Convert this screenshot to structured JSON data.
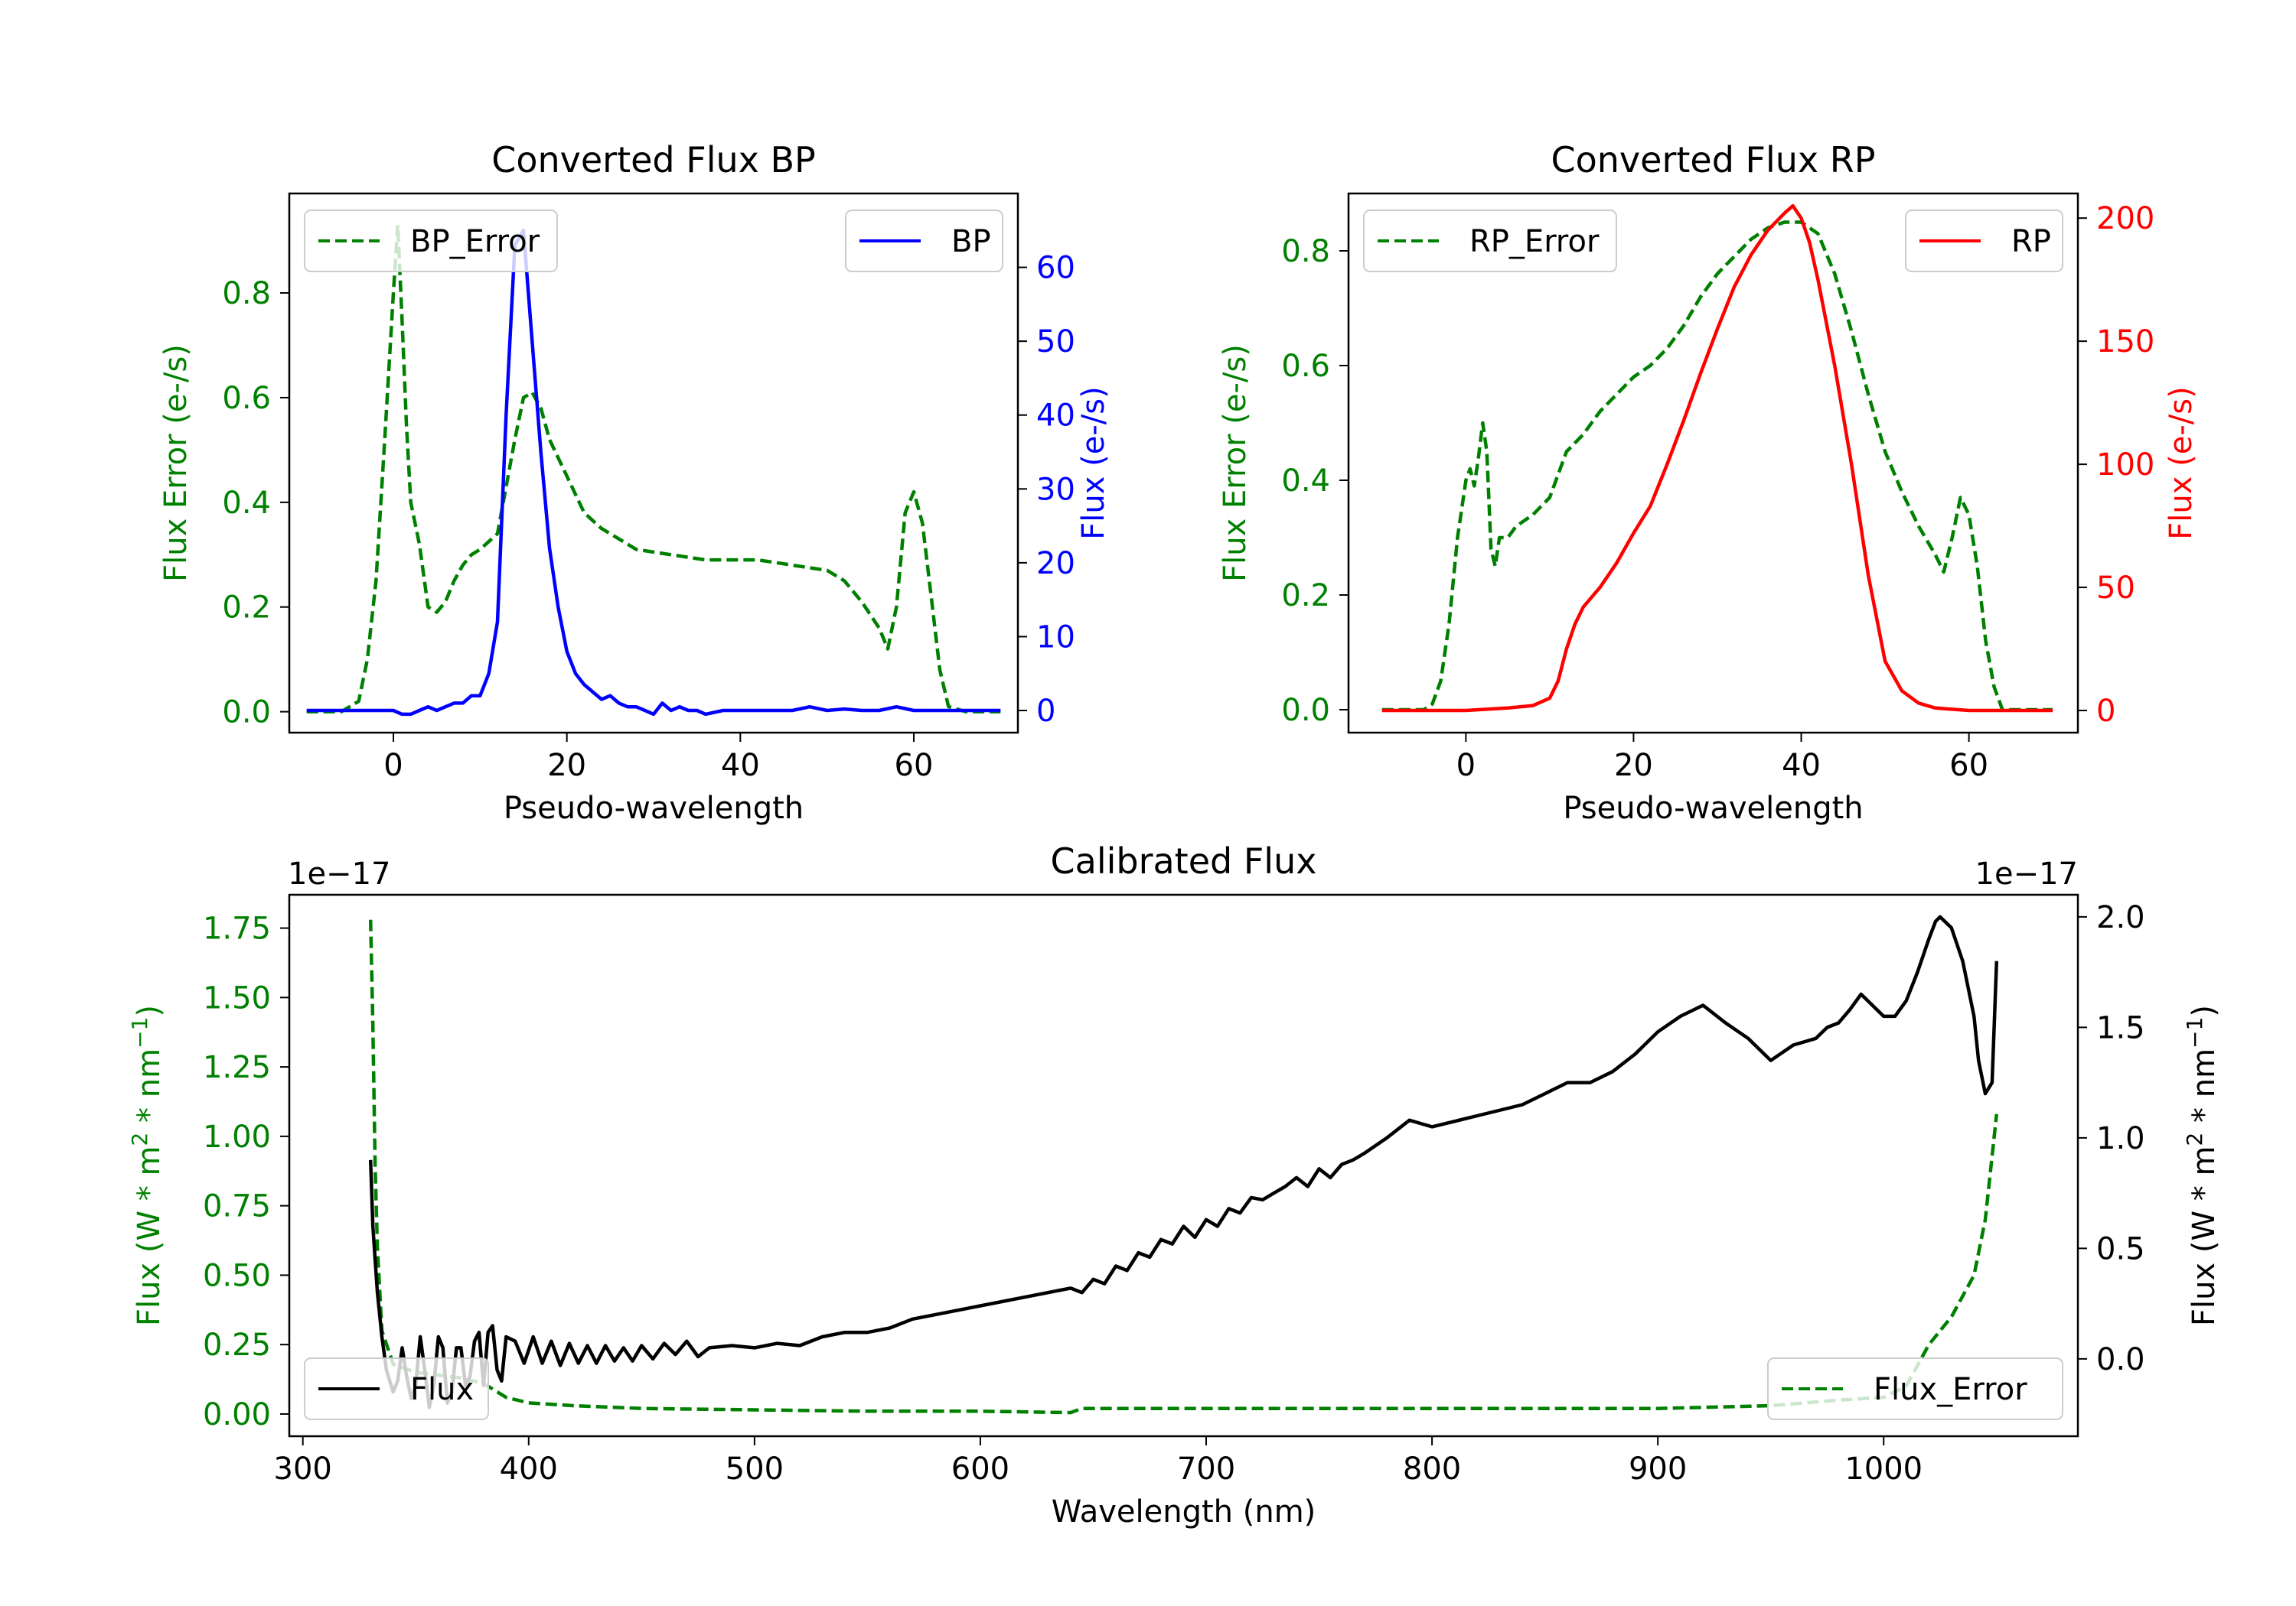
{
  "colors": {
    "green": "#008000",
    "blue": "#0000ff",
    "red": "#ff0000",
    "black": "#000000"
  },
  "chart_data": [
    {
      "type": "line",
      "title": "Converted Flux BP",
      "xlabel": "Pseudo-wavelength",
      "ylabel_left": "Flux Error (e-/s)",
      "ylabel_right": "Flux (e-/s)",
      "xlim": [
        -12,
        72
      ],
      "ylim_left": [
        -0.04,
        0.99
      ],
      "ylim_right": [
        -3,
        70
      ],
      "xticks": [
        0,
        20,
        40,
        60
      ],
      "yticks_left": [
        0.0,
        0.2,
        0.4,
        0.6,
        0.8
      ],
      "yticks_right": [
        0,
        10,
        20,
        30,
        40,
        50,
        60
      ],
      "legend_left": "BP_Error",
      "legend_right": "BP",
      "series": [
        {
          "name": "BP_Error",
          "axis": "left",
          "color": "green",
          "dash": true,
          "x": [
            -10,
            -6,
            -4,
            -3,
            -2,
            -1,
            0,
            0.5,
            1,
            1.5,
            2,
            3,
            4,
            5,
            6,
            7,
            8,
            9,
            10,
            12,
            14,
            15,
            16,
            17,
            18,
            20,
            22,
            24,
            26,
            28,
            30,
            32,
            34,
            36,
            38,
            40,
            42,
            44,
            46,
            48,
            50,
            52,
            54,
            56,
            57,
            58,
            59,
            60,
            61,
            62,
            63,
            64,
            66,
            70
          ],
          "y": [
            0,
            0,
            0.02,
            0.1,
            0.25,
            0.52,
            0.8,
            0.93,
            0.75,
            0.55,
            0.4,
            0.32,
            0.2,
            0.19,
            0.21,
            0.25,
            0.28,
            0.3,
            0.31,
            0.34,
            0.52,
            0.6,
            0.61,
            0.58,
            0.52,
            0.45,
            0.38,
            0.35,
            0.33,
            0.31,
            0.305,
            0.3,
            0.295,
            0.29,
            0.29,
            0.29,
            0.29,
            0.285,
            0.28,
            0.275,
            0.27,
            0.25,
            0.21,
            0.16,
            0.12,
            0.2,
            0.38,
            0.42,
            0.36,
            0.22,
            0.08,
            0.01,
            0,
            0
          ]
        },
        {
          "name": "BP",
          "axis": "right",
          "color": "blue",
          "dash": false,
          "x": [
            -10,
            -5,
            -2,
            0,
            1,
            2,
            3,
            4,
            5,
            6,
            7,
            8,
            9,
            10,
            11,
            12,
            13,
            14,
            15,
            16,
            17,
            18,
            19,
            20,
            21,
            22,
            23,
            24,
            25,
            26,
            27,
            28,
            29,
            30,
            31,
            32,
            33,
            34,
            35,
            36,
            38,
            40,
            42,
            44,
            46,
            48,
            50,
            52,
            54,
            56,
            58,
            60,
            62,
            64,
            66,
            70
          ],
          "y": [
            0,
            0,
            0,
            0,
            -0.5,
            -0.5,
            0,
            0.5,
            0,
            0.5,
            1,
            1,
            2,
            2,
            5,
            12,
            40,
            63,
            65,
            50,
            35,
            22,
            14,
            8,
            5,
            3.5,
            2.5,
            1.5,
            2,
            1,
            0.5,
            0.5,
            0,
            -0.5,
            1,
            0,
            0.5,
            0,
            0,
            -0.5,
            0,
            0,
            0,
            0,
            0,
            0.5,
            0,
            0.2,
            0,
            0,
            0.5,
            0,
            0,
            0,
            0,
            0
          ]
        }
      ]
    },
    {
      "type": "line",
      "title": "Converted Flux RP",
      "xlabel": "Pseudo-wavelength",
      "ylabel_left": "Flux Error (e-/s)",
      "ylabel_right": "Flux (e-/s)",
      "xlim": [
        -14,
        73
      ],
      "ylim_left": [
        -0.04,
        0.9
      ],
      "ylim_right": [
        -9,
        210
      ],
      "xticks": [
        0,
        20,
        40,
        60
      ],
      "yticks_left": [
        0.0,
        0.2,
        0.4,
        0.6,
        0.8
      ],
      "yticks_right": [
        0,
        50,
        100,
        150,
        200
      ],
      "legend_left": "RP_Error",
      "legend_right": "RP",
      "series": [
        {
          "name": "RP_Error",
          "axis": "left",
          "color": "green",
          "dash": true,
          "x": [
            -10,
            -5,
            -4,
            -3,
            -2,
            -1,
            0,
            0.5,
            1,
            1.5,
            2,
            2.5,
            3,
            3.5,
            4,
            5,
            6,
            8,
            10,
            12,
            14,
            16,
            18,
            20,
            22,
            24,
            26,
            28,
            30,
            32,
            34,
            36,
            38,
            40,
            42,
            44,
            46,
            48,
            50,
            52,
            54,
            56,
            57,
            58,
            59,
            60,
            61,
            62,
            63,
            64,
            66,
            70
          ],
          "y": [
            0,
            0,
            0.01,
            0.05,
            0.15,
            0.3,
            0.4,
            0.42,
            0.39,
            0.44,
            0.5,
            0.45,
            0.28,
            0.25,
            0.3,
            0.3,
            0.32,
            0.34,
            0.37,
            0.45,
            0.48,
            0.52,
            0.55,
            0.58,
            0.6,
            0.63,
            0.67,
            0.72,
            0.76,
            0.79,
            0.82,
            0.84,
            0.85,
            0.85,
            0.83,
            0.76,
            0.66,
            0.55,
            0.45,
            0.38,
            0.32,
            0.27,
            0.24,
            0.3,
            0.37,
            0.34,
            0.25,
            0.12,
            0.04,
            0,
            0,
            0
          ]
        },
        {
          "name": "RP",
          "axis": "right",
          "color": "red",
          "dash": false,
          "x": [
            -10,
            0,
            5,
            8,
            10,
            11,
            12,
            13,
            14,
            16,
            18,
            20,
            22,
            24,
            26,
            28,
            30,
            32,
            34,
            36,
            38,
            39,
            40,
            41,
            42,
            44,
            46,
            48,
            50,
            52,
            54,
            56,
            60,
            64,
            70
          ],
          "y": [
            0,
            0,
            1,
            2,
            5,
            12,
            25,
            35,
            42,
            50,
            60,
            72,
            83,
            100,
            118,
            137,
            155,
            172,
            185,
            195,
            202,
            205,
            200,
            190,
            175,
            140,
            100,
            55,
            20,
            8,
            3,
            1,
            0,
            0,
            0
          ]
        }
      ]
    },
    {
      "type": "line",
      "title": "Calibrated Flux",
      "xlabel": "Wavelength (nm)",
      "ylabel_left": "Flux (W * m$^2$ * nm$^{-1}$)",
      "ylabel_right": "Flux (W * m$^2$ * nm$^{-1}$)",
      "offset_left": "1e−17",
      "offset_right": "1e−17",
      "xlim": [
        294,
        1086
      ],
      "ylim_left": [
        -0.08,
        1.87
      ],
      "ylim_right": [
        -0.35,
        2.1
      ],
      "xticks": [
        300,
        400,
        500,
        600,
        700,
        800,
        900,
        1000
      ],
      "yticks_left": [
        0.0,
        0.25,
        0.5,
        0.75,
        1.0,
        1.25,
        1.5,
        1.75
      ],
      "yticks_right": [
        0.0,
        0.5,
        1.0,
        1.5,
        2.0
      ],
      "legend_left": "Flux",
      "legend_right": "Flux_Error",
      "series": [
        {
          "name": "Flux_Error",
          "axis": "left",
          "color": "green",
          "dash": true,
          "x": [
            330,
            331,
            332,
            333,
            335,
            340,
            350,
            360,
            370,
            380,
            390,
            400,
            420,
            450,
            500,
            550,
            600,
            640,
            645,
            700,
            800,
            900,
            950,
            980,
            1000,
            1010,
            1020,
            1030,
            1040,
            1045,
            1050
          ],
          "y": [
            1.78,
            1.4,
            0.9,
            0.6,
            0.3,
            0.18,
            0.15,
            0.14,
            0.13,
            0.11,
            0.06,
            0.04,
            0.03,
            0.02,
            0.015,
            0.01,
            0.01,
            0.005,
            0.02,
            0.02,
            0.02,
            0.02,
            0.03,
            0.05,
            0.06,
            0.1,
            0.25,
            0.35,
            0.5,
            0.7,
            1.08
          ]
        },
        {
          "name": "Flux",
          "axis": "right",
          "color": "black",
          "dash": false,
          "x": [
            330,
            331,
            333,
            335,
            337,
            340,
            342,
            344,
            346,
            348,
            350,
            352,
            354,
            356,
            358,
            360,
            362,
            364,
            366,
            368,
            370,
            372,
            374,
            376,
            378,
            380,
            382,
            384,
            386,
            388,
            390,
            394,
            398,
            402,
            406,
            410,
            414,
            418,
            422,
            426,
            430,
            434,
            438,
            442,
            446,
            450,
            455,
            460,
            465,
            470,
            475,
            480,
            490,
            500,
            510,
            520,
            530,
            540,
            550,
            560,
            570,
            580,
            590,
            600,
            620,
            640,
            645,
            650,
            655,
            660,
            665,
            670,
            675,
            680,
            685,
            690,
            695,
            700,
            705,
            710,
            715,
            720,
            725,
            730,
            735,
            740,
            745,
            750,
            755,
            760,
            765,
            770,
            780,
            790,
            800,
            820,
            840,
            850,
            860,
            870,
            880,
            890,
            900,
            910,
            920,
            930,
            940,
            950,
            960,
            970,
            975,
            980,
            985,
            990,
            995,
            1000,
            1005,
            1010,
            1015,
            1020,
            1023,
            1025,
            1030,
            1035,
            1040,
            1042,
            1045,
            1048,
            1050
          ],
          "y": [
            0.9,
            0.6,
            0.3,
            0.1,
            -0.05,
            -0.15,
            -0.1,
            0.05,
            -0.08,
            -0.18,
            -0.12,
            0.1,
            -0.05,
            -0.22,
            -0.12,
            0.1,
            0.05,
            -0.2,
            -0.15,
            0.05,
            0.05,
            -0.12,
            -0.08,
            0.08,
            0.12,
            -0.12,
            0.12,
            0.15,
            -0.05,
            -0.1,
            0.1,
            0.08,
            -0.02,
            0.1,
            -0.02,
            0.08,
            -0.03,
            0.07,
            -0.02,
            0.06,
            -0.02,
            0.06,
            -0.01,
            0.05,
            -0.01,
            0.06,
            0.0,
            0.07,
            0.02,
            0.08,
            0.01,
            0.05,
            0.06,
            0.05,
            0.07,
            0.06,
            0.1,
            0.12,
            0.12,
            0.14,
            0.18,
            0.2,
            0.22,
            0.24,
            0.28,
            0.32,
            0.3,
            0.36,
            0.34,
            0.42,
            0.4,
            0.48,
            0.46,
            0.54,
            0.52,
            0.6,
            0.55,
            0.63,
            0.6,
            0.68,
            0.66,
            0.73,
            0.72,
            0.75,
            0.78,
            0.82,
            0.78,
            0.86,
            0.82,
            0.88,
            0.9,
            0.93,
            1.0,
            1.08,
            1.05,
            1.1,
            1.15,
            1.2,
            1.25,
            1.25,
            1.3,
            1.38,
            1.48,
            1.55,
            1.6,
            1.52,
            1.45,
            1.35,
            1.42,
            1.45,
            1.5,
            1.52,
            1.58,
            1.65,
            1.6,
            1.55,
            1.55,
            1.62,
            1.75,
            1.9,
            1.98,
            2.0,
            1.95,
            1.8,
            1.55,
            1.35,
            1.2,
            1.25,
            1.8
          ]
        }
      ]
    }
  ]
}
